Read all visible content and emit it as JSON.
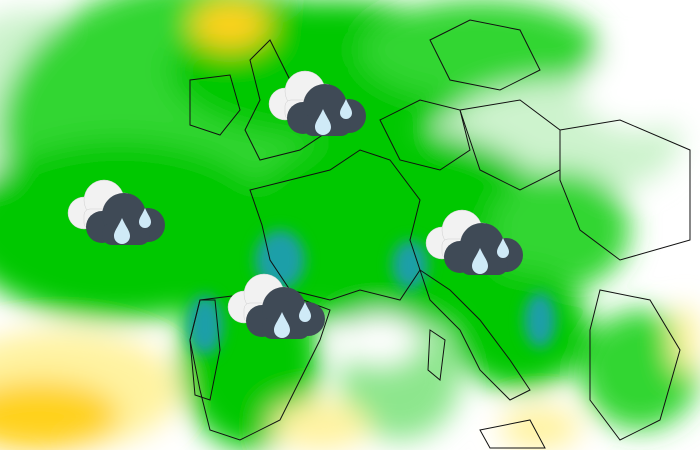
{
  "map": {
    "type": "precipitation-forecast",
    "region": "Europe",
    "palette": {
      "heavy": "#1a9fa8",
      "strong": "#00c800",
      "moderate": "#33d633",
      "light": "#8de68d",
      "very_light": "#cdf3cd",
      "none": "#ffffff",
      "dry_light": "#fff3a0",
      "dry": "#ffd21a",
      "borders": "#111111"
    }
  },
  "weather_icons": [
    {
      "icon": "rain-cloud-icon",
      "label": "rain"
    },
    {
      "icon": "rain-cloud-icon",
      "label": "rain"
    },
    {
      "icon": "rain-cloud-icon",
      "label": "rain"
    },
    {
      "icon": "rain-cloud-icon",
      "label": "rain"
    }
  ],
  "icon_colors": {
    "cloud_back": "#f2f2f2",
    "cloud_front": "#3f4a56",
    "drop": "#cfeaf7"
  }
}
